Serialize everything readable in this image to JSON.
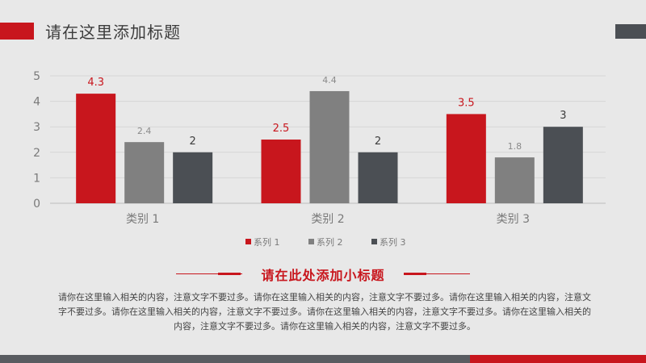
{
  "header": {
    "title": "请在这里添加标题"
  },
  "section": {
    "subtitle": "请在此处添加小标题",
    "body": "请你在这里输入相关的内容，注意文字不要过多。请你在这里输入相关的内容，注意文字不要过多。请你在这里输入相关的内容，注意文字不要过多。请你在这里输入相关的内容，注意文字不要过多。请你在这里输入相关的内容，注意文字不要过多。请你在这里输入相关的内容，注意文字不要过多。请你在这里输入相关的内容，注意文字不要过多。"
  },
  "colors": {
    "accent_red": "#c8161d",
    "series_gray": "#808080",
    "series_dark": "#4b4f54"
  },
  "chart_data": {
    "type": "bar",
    "categories": [
      "类别 1",
      "类别 2",
      "类别 3"
    ],
    "series": [
      {
        "name": "系列 1",
        "values": [
          4.3,
          2.5,
          3.5
        ],
        "color": "#c8161d"
      },
      {
        "name": "系列 2",
        "values": [
          2.4,
          4.4,
          1.8
        ],
        "color": "#808080"
      },
      {
        "name": "系列 3",
        "values": [
          2,
          2,
          3
        ],
        "color": "#4b4f54"
      }
    ],
    "ylim": [
      0,
      5
    ],
    "yticks": [
      "0",
      "1",
      "2",
      "3",
      "4",
      "5"
    ],
    "grid": true,
    "legend_position": "bottom",
    "title": "",
    "xlabel": "",
    "ylabel": ""
  }
}
